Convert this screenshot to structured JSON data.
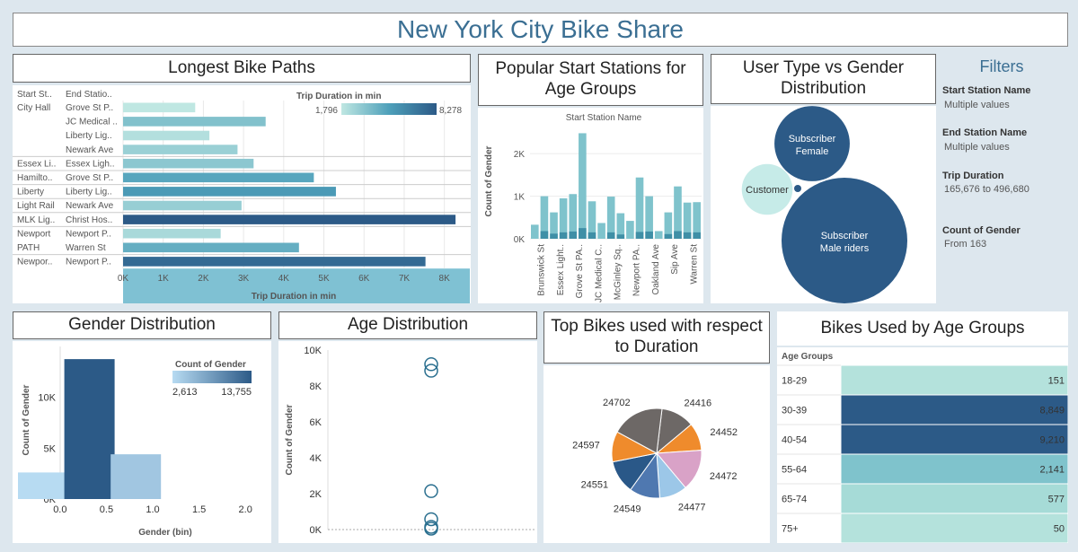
{
  "dashboard_title": "New York City Bike Share",
  "filters": {
    "title": "Filters",
    "items": [
      {
        "label": "Start Station Name",
        "value": "Multiple values"
      },
      {
        "label": "End Station Name",
        "value": "Multiple values"
      },
      {
        "label": "Trip Duration",
        "value": "165,676 to 496,680"
      },
      {
        "label": "Count of Gender",
        "value": "From 163"
      }
    ]
  },
  "colors": {
    "dark": "#2c5a87",
    "mid": "#4ea0ba",
    "light": "#a6dbd7",
    "pale": "#c6ebe8"
  },
  "chart_data": [
    {
      "id": "longest",
      "type": "bar",
      "title": "Longest Bike Paths",
      "col_headers": [
        "Start St..",
        "End Statio.."
      ],
      "legend_title": "Trip Duration in min",
      "legend_min": "1,796",
      "legend_max": "8,278",
      "xlabel": "Trip Duration in min",
      "xticks": [
        "0K",
        "1K",
        "2K",
        "3K",
        "4K",
        "5K",
        "6K",
        "7K",
        "8K"
      ],
      "xlim": [
        0,
        8500
      ],
      "rows": [
        {
          "start": "City Hall",
          "end": "Grove St P..",
          "value": 1796
        },
        {
          "start": "",
          "end": "JC Medical ..",
          "value": 3550
        },
        {
          "start": "",
          "end": "Liberty Lig..",
          "value": 2150
        },
        {
          "start": "",
          "end": "Newark Ave",
          "value": 2850
        },
        {
          "start": "Essex Li..",
          "end": "Essex Ligh..",
          "value": 3250
        },
        {
          "start": "Hamilto..",
          "end": "Grove St P..",
          "value": 4750
        },
        {
          "start": "Liberty",
          "end": "Liberty Lig..",
          "value": 5300
        },
        {
          "start": "Light Rail",
          "end": "Newark Ave",
          "value": 2950
        },
        {
          "start": "MLK Lig..",
          "end": "Christ Hos..",
          "value": 8278
        },
        {
          "start": "Newport",
          "end": "Newport P..",
          "value": 2430
        },
        {
          "start": "PATH",
          "end": "Warren St",
          "value": 4380
        },
        {
          "start": "Newpor..",
          "end": "Newport P..",
          "value": 7530
        }
      ]
    },
    {
      "id": "popular",
      "type": "bar",
      "title": "Popular Start Stations for Age Groups",
      "top_label": "Start Station Name",
      "ylabel": "Count of Gender",
      "yticks": [
        "0K",
        "1K",
        "2K"
      ],
      "ylim": [
        0,
        2700
      ],
      "categories": [
        "Brunswick St",
        "Essex Light..",
        "Grove St PA..",
        "JC Medical C..",
        "McGinley Sq..",
        "Newport PA..",
        "Oakland Ave",
        "Sip Ave",
        "Warren St"
      ],
      "bars": [
        {
          "total": 330,
          "dark": 0
        },
        {
          "total": 1000,
          "dark": 180
        },
        {
          "total": 620,
          "dark": 120
        },
        {
          "total": 950,
          "dark": 150
        },
        {
          "total": 1050,
          "dark": 170
        },
        {
          "total": 2480,
          "dark": 250
        },
        {
          "total": 880,
          "dark": 150
        },
        {
          "total": 370,
          "dark": 0
        },
        {
          "total": 990,
          "dark": 150
        },
        {
          "total": 600,
          "dark": 100
        },
        {
          "total": 420,
          "dark": 0
        },
        {
          "total": 1440,
          "dark": 160
        },
        {
          "total": 1000,
          "dark": 170
        },
        {
          "total": 180,
          "dark": 0
        },
        {
          "total": 620,
          "dark": 110
        },
        {
          "total": 1230,
          "dark": 180
        },
        {
          "total": 850,
          "dark": 150
        },
        {
          "total": 860,
          "dark": 150
        }
      ]
    },
    {
      "id": "usertype",
      "type": "bubble",
      "title": "User Type vs Gender Distribution",
      "bubbles": [
        {
          "label1": "Subscriber",
          "label2": "Female",
          "value": 3300,
          "color": "#2c5a87"
        },
        {
          "label1": "Customer",
          "label2": "",
          "value": 1500,
          "color": "#c6ebe8"
        },
        {
          "label1": "",
          "label2": "",
          "value": 20,
          "color": "#2c5a87"
        },
        {
          "label1": "Subscriber",
          "label2": "Male riders",
          "value": 9200,
          "color": "#2c5a87"
        }
      ]
    },
    {
      "id": "gender",
      "type": "bar",
      "title": "Gender Distribution",
      "xlabel": "Gender (bin)",
      "ylabel": "Count of Gender",
      "xticks": [
        "0.0",
        "0.5",
        "1.0",
        "1.5",
        "2.0"
      ],
      "yticks": [
        "0K",
        "5K",
        "10K"
      ],
      "ylim": [
        0,
        15000
      ],
      "legend_title": "Count of Gender",
      "legend_min": "2,613",
      "legend_max": "13,755",
      "bars": [
        {
          "bin": 0,
          "value": 2613
        },
        {
          "bin": 1,
          "value": 13755
        },
        {
          "bin": 2,
          "value": 4400
        }
      ]
    },
    {
      "id": "age",
      "type": "scatter",
      "title": "Age Distribution",
      "ylabel": "Count of Gender",
      "yticks": [
        "0K",
        "2K",
        "4K",
        "6K",
        "8K",
        "10K"
      ],
      "ylim": [
        0,
        10000
      ],
      "values": [
        9210,
        8849,
        2141,
        577,
        151,
        50
      ]
    },
    {
      "id": "topbikes",
      "type": "pie",
      "title": "Top Bikes used with respect to Duration",
      "slices": [
        {
          "label": "24416",
          "value": 12,
          "color": "#6d6866"
        },
        {
          "label": "24452",
          "value": 10,
          "color": "#ef8b2c"
        },
        {
          "label": "24472",
          "value": 15,
          "color": "#d9a2c7"
        },
        {
          "label": "24477",
          "value": 10,
          "color": "#9cc7e8"
        },
        {
          "label": "24549",
          "value": 11,
          "color": "#4f78b0"
        },
        {
          "label": "24551",
          "value": 12,
          "color": "#2a5888"
        },
        {
          "label": "24597",
          "value": 11,
          "color": "#ef8b2c"
        },
        {
          "label": "24702",
          "value": 19,
          "color": "#6d6866"
        }
      ]
    },
    {
      "id": "agegroups",
      "type": "table",
      "title": "Bikes Used by Age Groups",
      "header": "Age Groups",
      "rows": [
        {
          "label": "18-29",
          "value": 151,
          "text": "151"
        },
        {
          "label": "30-39",
          "value": 8849,
          "text": "8,849"
        },
        {
          "label": "40-54",
          "value": 9210,
          "text": "9,210"
        },
        {
          "label": "55-64",
          "value": 2141,
          "text": "2,141"
        },
        {
          "label": "65-74",
          "value": 577,
          "text": "577"
        },
        {
          "label": "75+",
          "value": 50,
          "text": "50"
        }
      ]
    }
  ]
}
